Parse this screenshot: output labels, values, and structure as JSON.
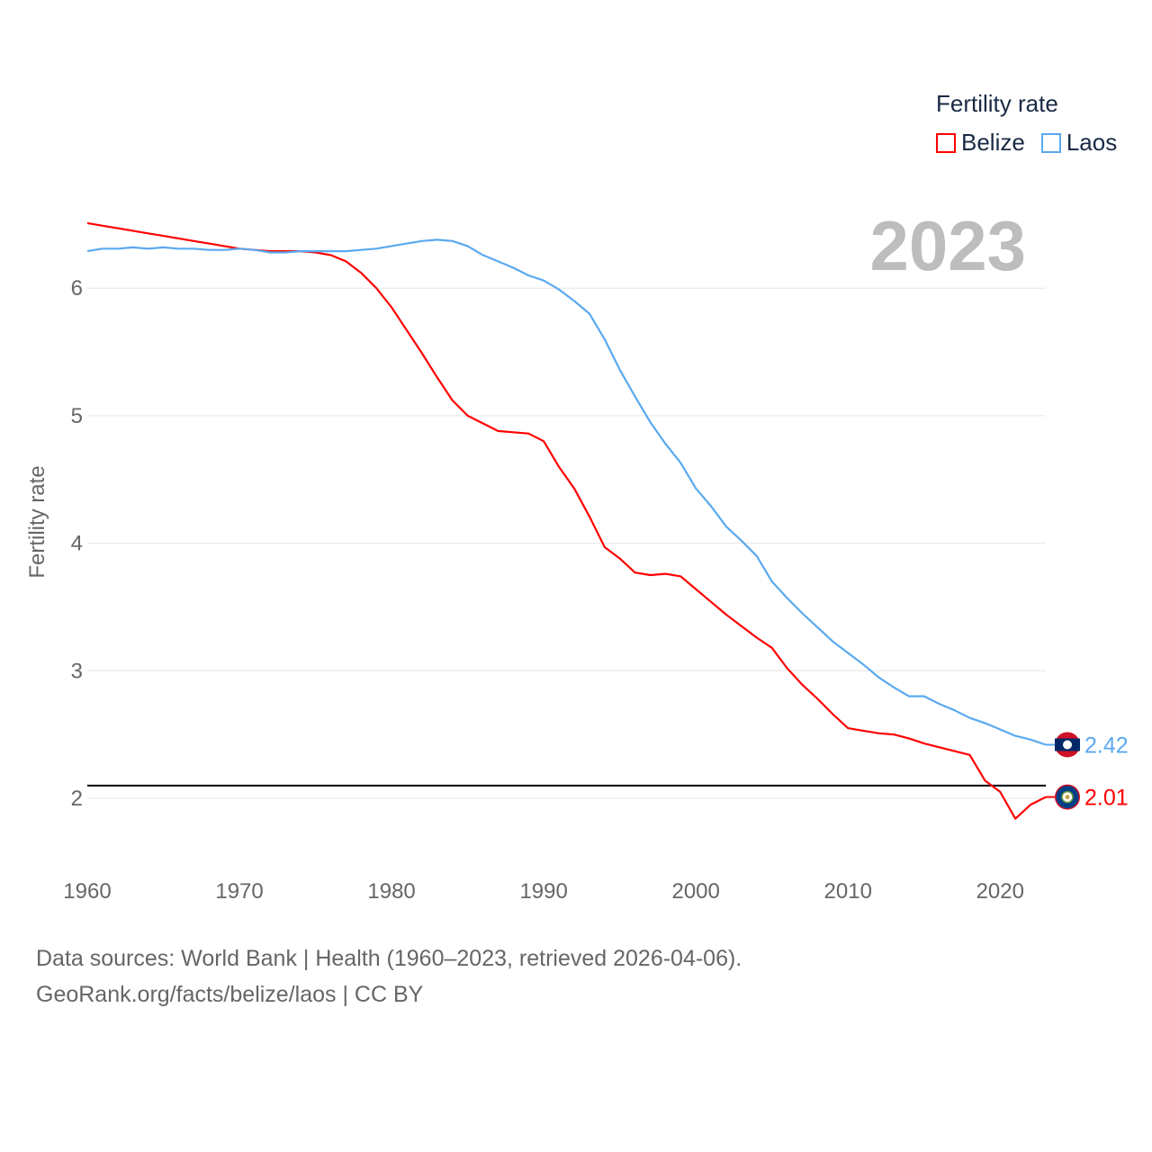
{
  "chart_data": {
    "type": "line",
    "title": "Fertility rate",
    "ylabel": "Fertility rate",
    "xlabel": "",
    "xlim": [
      1960,
      2023
    ],
    "ylim": [
      1.6,
      6.8
    ],
    "x_ticks": [
      "1960",
      "1970",
      "1980",
      "1990",
      "2000",
      "2010",
      "2020"
    ],
    "y_ticks": [
      "2",
      "3",
      "4",
      "5",
      "6"
    ],
    "grid": true,
    "legend_placement": "top-right",
    "reference_line": 2.1,
    "current_year": "2023",
    "x": [
      1960,
      1961,
      1962,
      1963,
      1964,
      1965,
      1966,
      1967,
      1968,
      1969,
      1970,
      1971,
      1972,
      1973,
      1974,
      1975,
      1976,
      1977,
      1978,
      1979,
      1980,
      1981,
      1982,
      1983,
      1984,
      1985,
      1986,
      1987,
      1988,
      1989,
      1990,
      1991,
      1992,
      1993,
      1994,
      1995,
      1996,
      1997,
      1998,
      1999,
      2000,
      2001,
      2002,
      2003,
      2004,
      2005,
      2006,
      2007,
      2008,
      2009,
      2010,
      2011,
      2012,
      2013,
      2014,
      2015,
      2016,
      2017,
      2018,
      2019,
      2020,
      2021,
      2022,
      2023
    ],
    "series": [
      {
        "name": "Belize",
        "color": "#ff0000",
        "end_label": "2.01",
        "values": [
          6.51,
          6.49,
          6.47,
          6.45,
          6.43,
          6.41,
          6.39,
          6.37,
          6.35,
          6.33,
          6.31,
          6.3,
          6.29,
          6.29,
          6.29,
          6.28,
          6.26,
          6.21,
          6.12,
          6.0,
          5.85,
          5.67,
          5.49,
          5.3,
          5.12,
          5.0,
          4.94,
          4.88,
          4.87,
          4.86,
          4.8,
          4.6,
          4.43,
          4.21,
          3.97,
          3.88,
          3.77,
          3.75,
          3.76,
          3.74,
          3.64,
          3.54,
          3.44,
          3.35,
          3.26,
          3.18,
          3.02,
          2.89,
          2.78,
          2.66,
          2.55,
          2.53,
          2.51,
          2.5,
          2.47,
          2.43,
          2.4,
          2.37,
          2.34,
          2.14,
          2.05,
          1.84,
          1.95,
          2.01
        ]
      },
      {
        "name": "Laos",
        "color": "#5aa9f0",
        "end_label": "2.42",
        "values": [
          6.29,
          6.31,
          6.31,
          6.32,
          6.31,
          6.32,
          6.31,
          6.31,
          6.3,
          6.3,
          6.31,
          6.3,
          6.28,
          6.28,
          6.29,
          6.29,
          6.29,
          6.29,
          6.3,
          6.31,
          6.33,
          6.35,
          6.37,
          6.38,
          6.37,
          6.33,
          6.26,
          6.21,
          6.16,
          6.1,
          6.06,
          5.99,
          5.9,
          5.8,
          5.6,
          5.36,
          5.15,
          4.95,
          4.78,
          4.63,
          4.43,
          4.29,
          4.13,
          4.02,
          3.9,
          3.7,
          3.57,
          3.45,
          3.34,
          3.23,
          3.14,
          3.05,
          2.95,
          2.87,
          2.8,
          2.8,
          2.74,
          2.69,
          2.63,
          2.59,
          2.54,
          2.49,
          2.46,
          2.42
        ]
      }
    ]
  },
  "footer": {
    "line1": "Data sources: World Bank | Health (1960–2023, retrieved 2026-04-06).",
    "line2": "GeoRank.org/facts/belize/laos | CC BY"
  }
}
